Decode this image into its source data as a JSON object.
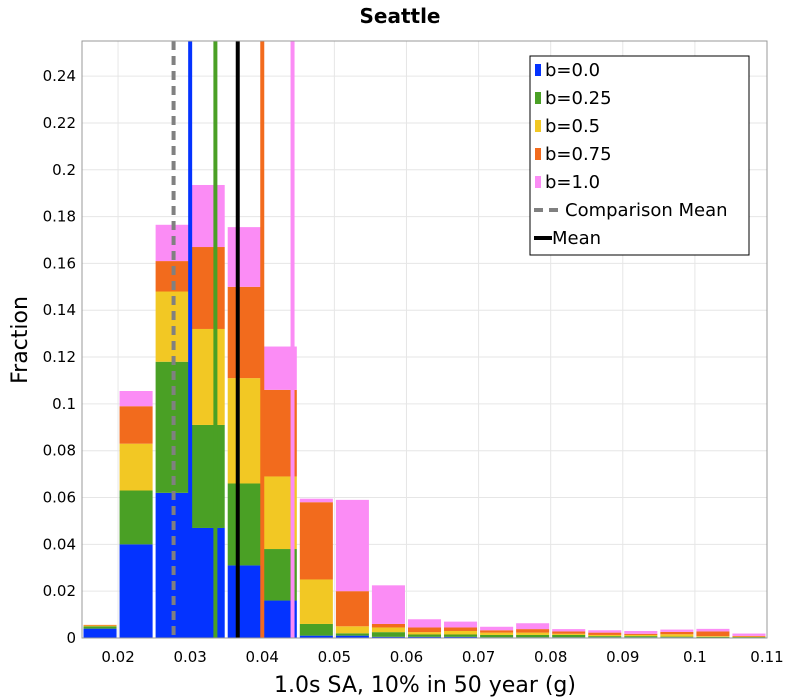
{
  "chart_data": {
    "type": "bar",
    "stacked": true,
    "title": "Seattle",
    "xlabel": "1.0s SA, 10% in 50 year (g)",
    "ylabel": "Fraction",
    "xlim": [
      0.015,
      0.11
    ],
    "ylim": [
      0,
      0.255
    ],
    "xticks": [
      0.02,
      0.03,
      0.04,
      0.05,
      0.06,
      0.07,
      0.08,
      0.09,
      0.1,
      0.11
    ],
    "xtick_labels": [
      "0.02",
      "0.03",
      "0.04",
      "0.05",
      "0.06",
      "0.07",
      "0.08",
      "0.09",
      "0.1",
      "0.11"
    ],
    "yticks": [
      0,
      0.02,
      0.04,
      0.06,
      0.08,
      0.1,
      0.12,
      0.14,
      0.16,
      0.18,
      0.2,
      0.22,
      0.24
    ],
    "ytick_labels": [
      "0",
      "0.02",
      "0.04",
      "0.06",
      "0.08",
      "0.1",
      "0.12",
      "0.14",
      "0.16",
      "0.18",
      "0.2",
      "0.22",
      "0.24"
    ],
    "bin_width": 0.005,
    "bin_starts": [
      0.015,
      0.02,
      0.025,
      0.03,
      0.035,
      0.04,
      0.045,
      0.05,
      0.055,
      0.06,
      0.065,
      0.07,
      0.075,
      0.08,
      0.085,
      0.09,
      0.095,
      0.1,
      0.105
    ],
    "series": [
      {
        "name": "b=0.0",
        "color": "#0433ff",
        "values": [
          0.004,
          0.04,
          0.062,
          0.047,
          0.031,
          0.016,
          0.001,
          0.001,
          0.0005,
          0.0005,
          0.0005,
          0.0003,
          0.0003,
          0.0003,
          0.0003,
          0.0003,
          0.0003,
          0.0002,
          0.0002
        ]
      },
      {
        "name": "b=0.25",
        "color": "#4aa025",
        "values": [
          0.001,
          0.023,
          0.056,
          0.044,
          0.035,
          0.022,
          0.005,
          0.001,
          0.002,
          0.001,
          0.001,
          0.001,
          0.001,
          0.001,
          0.0005,
          0.0005,
          0.0003,
          0.0003,
          0.0002
        ]
      },
      {
        "name": "b=0.5",
        "color": "#f2c824",
        "values": [
          0.0003,
          0.02,
          0.03,
          0.041,
          0.045,
          0.031,
          0.019,
          0.003,
          0.002,
          0.001,
          0.0015,
          0.001,
          0.001,
          0.0005,
          0.0005,
          0.0005,
          0.001,
          0.0003,
          0.0002
        ]
      },
      {
        "name": "b=0.75",
        "color": "#f26b1d",
        "values": [
          0.0003,
          0.016,
          0.013,
          0.035,
          0.039,
          0.037,
          0.033,
          0.015,
          0.0015,
          0.002,
          0.0015,
          0.001,
          0.0015,
          0.001,
          0.001,
          0.0005,
          0.001,
          0.002,
          0.0003
        ]
      },
      {
        "name": "b=1.0",
        "color": "#fb8cf5",
        "values": [
          0.0,
          0.0065,
          0.0155,
          0.0265,
          0.0255,
          0.0185,
          0.0015,
          0.039,
          0.0165,
          0.0035,
          0.0025,
          0.0015,
          0.0025,
          0.001,
          0.001,
          0.0012,
          0.001,
          0.0011,
          0.001
        ]
      }
    ],
    "vertical_lines": [
      {
        "name": "b=0.0 mean",
        "x": 0.03,
        "color": "#0433ff",
        "style": "solid"
      },
      {
        "name": "b=0.25 mean",
        "x": 0.0335,
        "color": "#4aa025",
        "style": "solid"
      },
      {
        "name": "b=0.75 mean",
        "x": 0.04,
        "color": "#f26b1d",
        "style": "solid"
      },
      {
        "name": "b=1.0 mean",
        "x": 0.0442,
        "color": "#fb8cf5",
        "style": "solid"
      },
      {
        "name": "Comparison Mean",
        "x": 0.0277,
        "color": "#808080",
        "style": "dashed"
      },
      {
        "name": "Mean",
        "x": 0.0366,
        "color": "#000000",
        "style": "solid"
      }
    ],
    "legend": {
      "placement": "top-right",
      "entries": [
        {
          "label": "b=0.0",
          "color": "#0433ff",
          "kind": "patch"
        },
        {
          "label": "b=0.25",
          "color": "#4aa025",
          "kind": "patch"
        },
        {
          "label": "b=0.5",
          "color": "#f2c824",
          "kind": "patch"
        },
        {
          "label": "b=0.75",
          "color": "#f26b1d",
          "kind": "patch"
        },
        {
          "label": "b=1.0",
          "color": "#fb8cf5",
          "kind": "patch"
        },
        {
          "label": "Comparison Mean",
          "color": "#808080",
          "kind": "dashed-line"
        },
        {
          "label": "Mean",
          "color": "#000000",
          "kind": "line"
        }
      ]
    },
    "grid": true
  }
}
